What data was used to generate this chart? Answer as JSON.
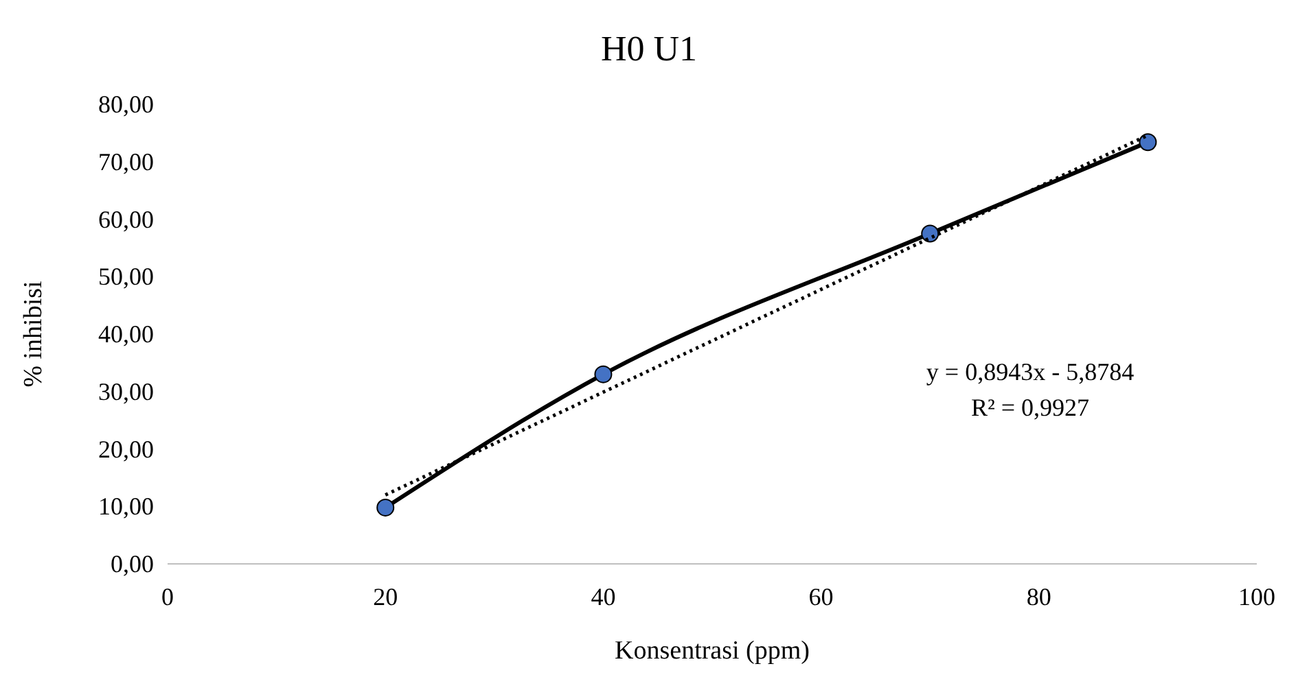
{
  "chart_data": {
    "type": "line",
    "title": "H0 U1",
    "xlabel": "Konsentrasi (ppm)",
    "ylabel": "% inhibisi",
    "xlim": [
      0,
      100
    ],
    "xticks": [
      0,
      20,
      40,
      60,
      80,
      100
    ],
    "ylim": [
      0,
      80
    ],
    "yticks": [
      {
        "value": 0,
        "label": "0,00"
      },
      {
        "value": 10,
        "label": "10,00"
      },
      {
        "value": 20,
        "label": "20,00"
      },
      {
        "value": 30,
        "label": "30,00"
      },
      {
        "value": 40,
        "label": "40,00"
      },
      {
        "value": 50,
        "label": "50,00"
      },
      {
        "value": 60,
        "label": "60,00"
      },
      {
        "value": 70,
        "label": "70,00"
      },
      {
        "value": 80,
        "label": "80,00"
      }
    ],
    "grid": false,
    "series": [
      {
        "x": [
          20,
          40,
          70,
          90
        ],
        "values": [
          9.8,
          33.0,
          57.5,
          73.4
        ],
        "color": "#000000",
        "marker": "circle",
        "line_style": "solid"
      },
      {
        "type": "line",
        "x": [
          20,
          90
        ],
        "values": [
          12.0,
          74.6
        ],
        "color": "#000000",
        "marker": "none",
        "line_style": "dotted"
      }
    ],
    "annotations": [
      "y = 0,8943x - 5,8784",
      "R² = 0,9927"
    ]
  }
}
